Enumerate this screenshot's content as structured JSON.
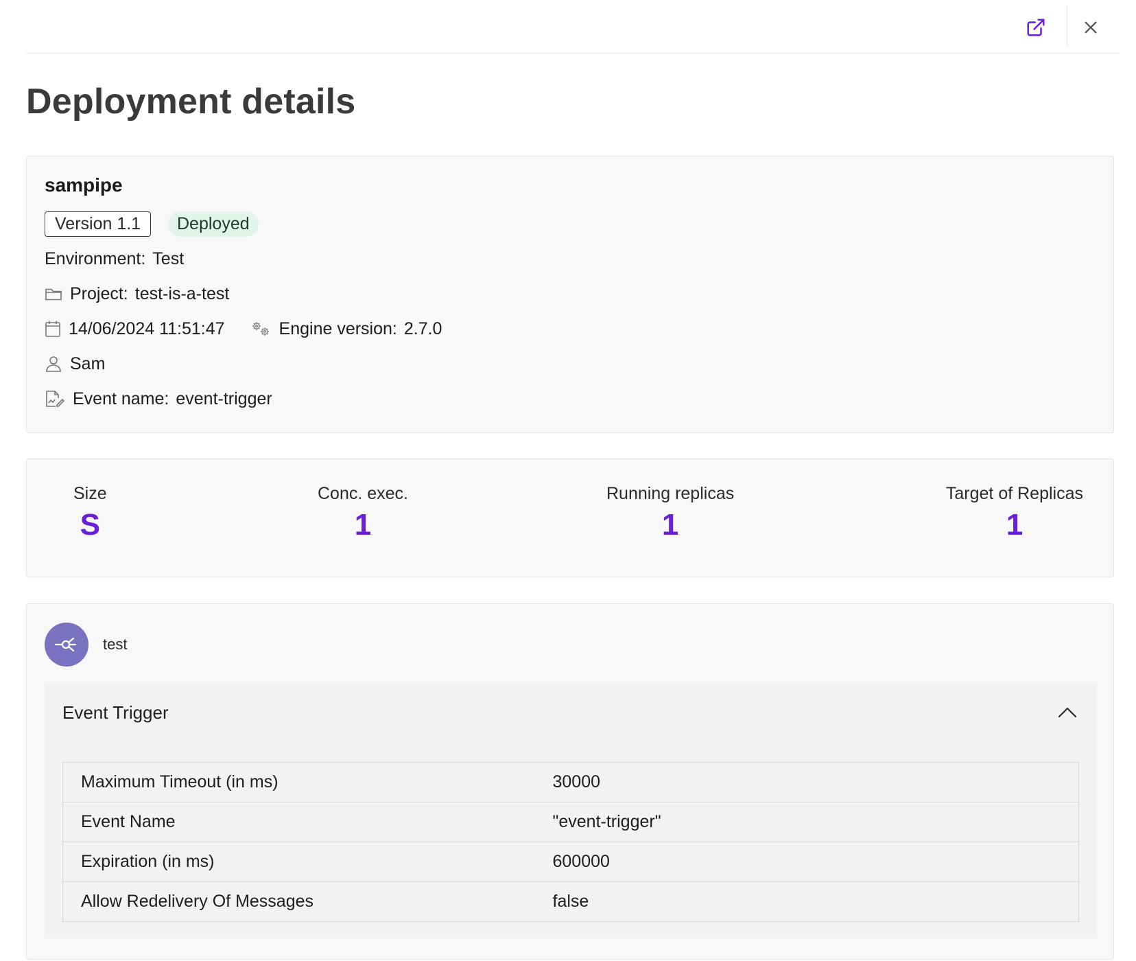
{
  "header": {
    "title": "Deployment details"
  },
  "deployment": {
    "name": "sampipe",
    "version": "Version 1.1",
    "status": "Deployed",
    "environment_label": "Environment:",
    "environment": "Test",
    "project_label": "Project:",
    "project": "test-is-a-test",
    "date": "14/06/2024 11:51:47",
    "engine_label": "Engine version:",
    "engine_version": "2.7.0",
    "user": "Sam",
    "event_label": "Event name:",
    "event_name": "event-trigger"
  },
  "stats": [
    {
      "label": "Size",
      "value": "S"
    },
    {
      "label": "Conc. exec.",
      "value": "1"
    },
    {
      "label": "Running replicas",
      "value": "1"
    },
    {
      "label": "Target of Replicas",
      "value": "1"
    }
  ],
  "step": {
    "name": "test",
    "icon": "trigger-icon",
    "accordion_title": "Event Trigger",
    "expanded": true,
    "properties": [
      {
        "key": "Maximum Timeout (in ms)",
        "value": "30000"
      },
      {
        "key": "Event Name",
        "value": "\"event-trigger\""
      },
      {
        "key": "Expiration (in ms)",
        "value": "600000"
      },
      {
        "key": "Allow Redelivery Of Messages",
        "value": "false"
      }
    ]
  },
  "colors": {
    "accent": "#6a1fd8",
    "avatar": "#7a72c0",
    "badge_bg": "#e2f5ea"
  }
}
